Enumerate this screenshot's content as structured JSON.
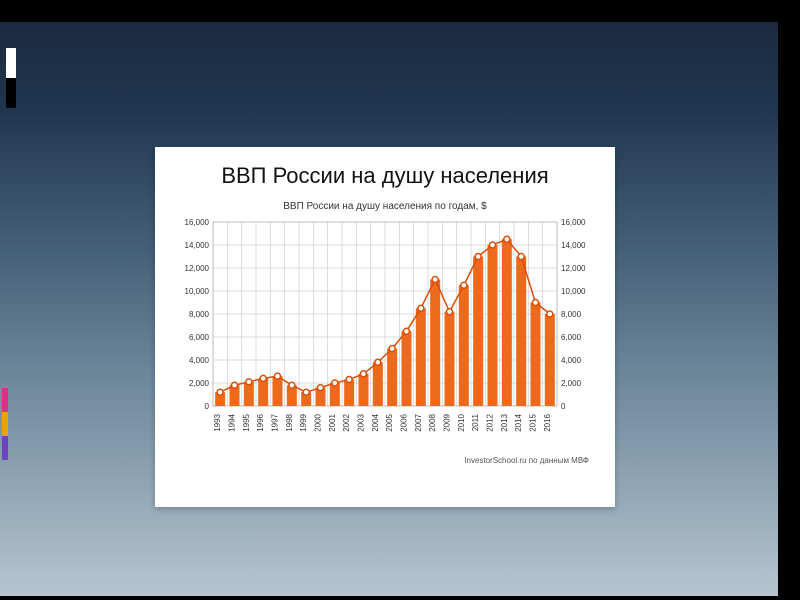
{
  "slide": {
    "background_gradient": [
      "#1b2a40",
      "#20364f",
      "#456178",
      "#6a8498",
      "#8fa4b4",
      "#b6c5d0"
    ],
    "border_color": "#000000",
    "left_accent_colors": {
      "white": "#ffffff",
      "black": "#000000",
      "magenta": "#d63384",
      "orange": "#f2a000",
      "purple": "#6f42c1"
    }
  },
  "card": {
    "title": "ВВП  России на душу населения",
    "title_fontsize": 22,
    "background": "#ffffff",
    "footer": "InvestorSchool.ru по данным МВФ"
  },
  "chart": {
    "type": "bar+line",
    "subtitle": "ВВП России на душу населения по годам, $",
    "subtitle_fontsize": 10,
    "years": [
      1993,
      1994,
      1995,
      1996,
      1997,
      1998,
      1999,
      2000,
      2001,
      2002,
      2003,
      2004,
      2005,
      2006,
      2007,
      2008,
      2009,
      2010,
      2011,
      2012,
      2013,
      2014,
      2015,
      2016
    ],
    "values": [
      1200,
      1800,
      2100,
      2400,
      2600,
      1800,
      1200,
      1600,
      2000,
      2300,
      2800,
      3800,
      5000,
      6500,
      8500,
      11000,
      8200,
      10500,
      13000,
      14000,
      14500,
      13000,
      9000,
      8000
    ],
    "ylim": [
      0,
      16000
    ],
    "ytick_step": 2000,
    "yticks": [
      0,
      2000,
      4000,
      6000,
      8000,
      10000,
      12000,
      14000,
      16000
    ],
    "ylabel_left": true,
    "ylabel_right": true,
    "bar_color": "#ed6a1c",
    "area_color": "#f07a2e",
    "line_color": "#d84e0a",
    "marker_fill": "#ffffff",
    "marker_stroke": "#d84e0a",
    "marker_radius": 3,
    "grid_color": "#bdbdbd",
    "background_color": "#ffffff",
    "bar_width_ratio": 0.7,
    "axis_label_fontsize": 8
  }
}
